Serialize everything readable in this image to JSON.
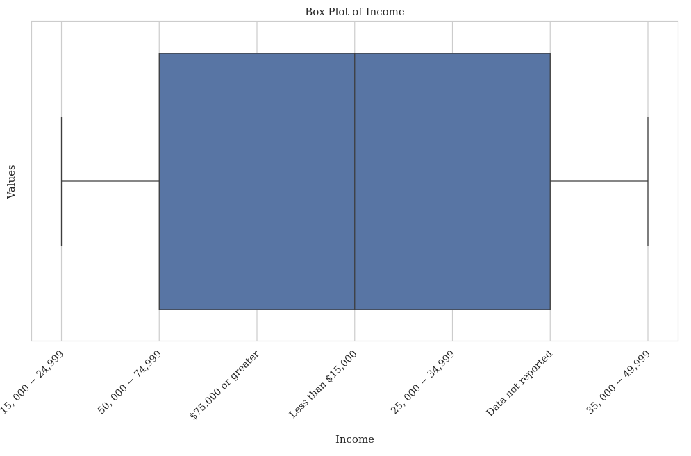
{
  "chart_data": {
    "type": "box",
    "orientation": "horizontal",
    "title": "Box Plot of Income",
    "xlabel": "Income",
    "ylabel": "Values",
    "categories": [
      "15, 000 − 24,999",
      "50, 000 − 74,999",
      "$75,000 or greater",
      "Less than $15,000",
      "25, 000 − 34,999",
      "Data not reported",
      "35, 000 − 49,999"
    ],
    "box": {
      "whisker_low": 0,
      "q1": 1,
      "median": 3,
      "q3": 5,
      "whisker_high": 6
    },
    "grid": true,
    "colors": {
      "box_fill": "#5875a4",
      "box_edge": "#3d3d3d",
      "grid": "#cccccc",
      "frame": "#cccccc"
    }
  }
}
